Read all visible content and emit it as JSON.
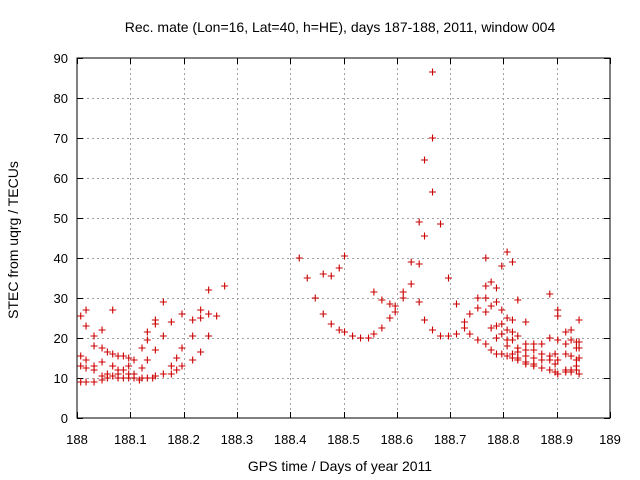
{
  "chart_data": {
    "type": "scatter",
    "title": "Rec. mate (Lon=16, Lat=40, h=HE), days 187-188, 2011, window 004",
    "xlabel": "GPS time / Days of year 2011",
    "ylabel": "STEC from uqrg / TECUs",
    "xlim": [
      188,
      189
    ],
    "ylim": [
      0,
      90
    ],
    "xticks": [
      188,
      188.1,
      188.2,
      188.3,
      188.4,
      188.5,
      188.6,
      188.7,
      188.8,
      188.9,
      189
    ],
    "xtick_labels": [
      "188",
      "188.1",
      "188.2",
      "188.3",
      "188.4",
      "188.5",
      "188.6",
      "188.7",
      "188.8",
      "188.9",
      "189"
    ],
    "yticks": [
      0,
      10,
      20,
      30,
      40,
      50,
      60,
      70,
      80,
      90
    ],
    "ytick_labels": [
      "0",
      "10",
      "20",
      "30",
      "40",
      "50",
      "60",
      "70",
      "80",
      "90"
    ],
    "grid": true,
    "marker": "+",
    "color": "#cc0000",
    "series": [
      {
        "name": "STEC",
        "points": [
          [
            188.007,
            25.5
          ],
          [
            188.007,
            15.5
          ],
          [
            188.007,
            13
          ],
          [
            188.007,
            9
          ],
          [
            188.017,
            27
          ],
          [
            188.017,
            23
          ],
          [
            188.017,
            14.5
          ],
          [
            188.017,
            12.5
          ],
          [
            188.017,
            9
          ],
          [
            188.032,
            20.5
          ],
          [
            188.032,
            18
          ],
          [
            188.032,
            13
          ],
          [
            188.032,
            12
          ],
          [
            188.032,
            9
          ],
          [
            188.047,
            22
          ],
          [
            188.047,
            17.5
          ],
          [
            188.047,
            14
          ],
          [
            188.047,
            10.5
          ],
          [
            188.047,
            9.5
          ],
          [
            188.057,
            16.5
          ],
          [
            188.057,
            11
          ],
          [
            188.057,
            10
          ],
          [
            188.067,
            27
          ],
          [
            188.067,
            16
          ],
          [
            188.067,
            13
          ],
          [
            188.067,
            10.5
          ],
          [
            188.077,
            15.5
          ],
          [
            188.077,
            12
          ],
          [
            188.077,
            11
          ],
          [
            188.077,
            10
          ],
          [
            188.087,
            15.5
          ],
          [
            188.087,
            12
          ],
          [
            188.087,
            10
          ],
          [
            188.097,
            15
          ],
          [
            188.097,
            13
          ],
          [
            188.097,
            11
          ],
          [
            188.097,
            10
          ],
          [
            188.107,
            14.5
          ],
          [
            188.107,
            11
          ],
          [
            188.107,
            10
          ],
          [
            188.117,
            9.5
          ],
          [
            188.122,
            17.5
          ],
          [
            188.122,
            12.5
          ],
          [
            188.122,
            10
          ],
          [
            188.132,
            21.5
          ],
          [
            188.132,
            19.5
          ],
          [
            188.132,
            14.5
          ],
          [
            188.132,
            10
          ],
          [
            188.142,
            10
          ],
          [
            188.147,
            24.5
          ],
          [
            188.147,
            23.5
          ],
          [
            188.147,
            17
          ],
          [
            188.147,
            10.5
          ],
          [
            188.162,
            29
          ],
          [
            188.162,
            20.5
          ],
          [
            188.162,
            11
          ],
          [
            188.177,
            24
          ],
          [
            188.177,
            13
          ],
          [
            188.177,
            11
          ],
          [
            188.187,
            15
          ],
          [
            188.187,
            12
          ],
          [
            188.197,
            26
          ],
          [
            188.197,
            17.5
          ],
          [
            188.197,
            13
          ],
          [
            188.217,
            24.5
          ],
          [
            188.217,
            20.5
          ],
          [
            188.217,
            14.5
          ],
          [
            188.232,
            27
          ],
          [
            188.232,
            25
          ],
          [
            188.232,
            16.5
          ],
          [
            188.247,
            32
          ],
          [
            188.247,
            26
          ],
          [
            188.247,
            20.5
          ],
          [
            188.262,
            25.5
          ],
          [
            188.277,
            33
          ],
          [
            188.417,
            40
          ],
          [
            188.432,
            35
          ],
          [
            188.447,
            30
          ],
          [
            188.462,
            36
          ],
          [
            188.462,
            26
          ],
          [
            188.477,
            35.5
          ],
          [
            188.477,
            23.5
          ],
          [
            188.492,
            37.5
          ],
          [
            188.492,
            22
          ],
          [
            188.502,
            40.5
          ],
          [
            188.502,
            21.5
          ],
          [
            188.517,
            20.5
          ],
          [
            188.532,
            20
          ],
          [
            188.547,
            20
          ],
          [
            188.557,
            31.5
          ],
          [
            188.557,
            21
          ],
          [
            188.572,
            29.5
          ],
          [
            188.572,
            22.5
          ],
          [
            188.587,
            28.5
          ],
          [
            188.587,
            25
          ],
          [
            188.597,
            28
          ],
          [
            188.597,
            26.5
          ],
          [
            188.612,
            31.5
          ],
          [
            188.612,
            30
          ],
          [
            188.627,
            39
          ],
          [
            188.627,
            33.5
          ],
          [
            188.642,
            49
          ],
          [
            188.642,
            38.5
          ],
          [
            188.642,
            29
          ],
          [
            188.652,
            64.5
          ],
          [
            188.652,
            45.5
          ],
          [
            188.652,
            24.5
          ],
          [
            188.667,
            86.5
          ],
          [
            188.667,
            70
          ],
          [
            188.667,
            56.5
          ],
          [
            188.667,
            22
          ],
          [
            188.682,
            48.5
          ],
          [
            188.682,
            20.5
          ],
          [
            188.697,
            35
          ],
          [
            188.697,
            20.5
          ],
          [
            188.712,
            28.5
          ],
          [
            188.712,
            21
          ],
          [
            188.727,
            24
          ],
          [
            188.727,
            22.5
          ],
          [
            188.737,
            26
          ],
          [
            188.737,
            21
          ],
          [
            188.752,
            30
          ],
          [
            188.752,
            27.5
          ],
          [
            188.752,
            19.5
          ],
          [
            188.767,
            40
          ],
          [
            188.767,
            33
          ],
          [
            188.767,
            30
          ],
          [
            188.767,
            26.5
          ],
          [
            188.767,
            18.5
          ],
          [
            188.777,
            34
          ],
          [
            188.777,
            28
          ],
          [
            188.777,
            22.5
          ],
          [
            188.777,
            17
          ],
          [
            188.787,
            32.5
          ],
          [
            188.787,
            29
          ],
          [
            188.787,
            23
          ],
          [
            188.787,
            20
          ],
          [
            188.787,
            16
          ],
          [
            188.797,
            38
          ],
          [
            188.797,
            27
          ],
          [
            188.797,
            23.5
          ],
          [
            188.797,
            21
          ],
          [
            188.797,
            16
          ],
          [
            188.807,
            41.5
          ],
          [
            188.807,
            25
          ],
          [
            188.807,
            22
          ],
          [
            188.807,
            19.5
          ],
          [
            188.807,
            18
          ],
          [
            188.807,
            15.5
          ],
          [
            188.817,
            39
          ],
          [
            188.817,
            24.5
          ],
          [
            188.817,
            21.5
          ],
          [
            188.817,
            19.5
          ],
          [
            188.817,
            16
          ],
          [
            188.817,
            15
          ],
          [
            188.827,
            29.5
          ],
          [
            188.827,
            20.5
          ],
          [
            188.827,
            17.5
          ],
          [
            188.827,
            16.5
          ],
          [
            188.827,
            15
          ],
          [
            188.827,
            14.5
          ],
          [
            188.842,
            24
          ],
          [
            188.842,
            18.5
          ],
          [
            188.842,
            17
          ],
          [
            188.842,
            15.5
          ],
          [
            188.842,
            14
          ],
          [
            188.842,
            13.5
          ],
          [
            188.857,
            18.5
          ],
          [
            188.857,
            17
          ],
          [
            188.857,
            15
          ],
          [
            188.857,
            13.5
          ],
          [
            188.857,
            13
          ],
          [
            188.872,
            18.5
          ],
          [
            188.872,
            16
          ],
          [
            188.872,
            14.5
          ],
          [
            188.872,
            12.5
          ],
          [
            188.887,
            31
          ],
          [
            188.887,
            20
          ],
          [
            188.887,
            15.5
          ],
          [
            188.887,
            14.5
          ],
          [
            188.887,
            12
          ],
          [
            188.897,
            16
          ],
          [
            188.897,
            13.5
          ],
          [
            188.897,
            11.5
          ],
          [
            188.902,
            27
          ],
          [
            188.902,
            25.5
          ],
          [
            188.902,
            19.5
          ],
          [
            188.902,
            14.5
          ],
          [
            188.902,
            11
          ],
          [
            188.917,
            21.5
          ],
          [
            188.917,
            18.5
          ],
          [
            188.917,
            16
          ],
          [
            188.917,
            12
          ],
          [
            188.917,
            11.5
          ],
          [
            188.927,
            22
          ],
          [
            188.927,
            19.5
          ],
          [
            188.927,
            15.5
          ],
          [
            188.927,
            12
          ],
          [
            188.927,
            11.5
          ],
          [
            188.937,
            19
          ],
          [
            188.937,
            17.5
          ],
          [
            188.937,
            14.5
          ],
          [
            188.937,
            13
          ],
          [
            188.937,
            12
          ],
          [
            188.942,
            24.5
          ],
          [
            188.942,
            19
          ],
          [
            188.942,
            17.5
          ],
          [
            188.942,
            15
          ],
          [
            188.942,
            11
          ]
        ]
      }
    ]
  }
}
